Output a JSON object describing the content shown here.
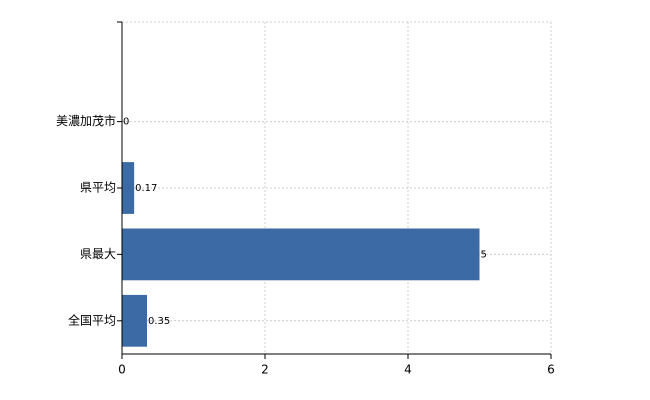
{
  "chart_data": {
    "type": "barh",
    "categories": [
      "美濃加茂市",
      "県平均",
      "県最大",
      "全国平均"
    ],
    "values": [
      0,
      0.17,
      5,
      0.35
    ],
    "color": "#3c6aa5",
    "xlim": [
      0,
      6
    ],
    "xticks": [
      0,
      2,
      4,
      6
    ],
    "grid": true
  }
}
